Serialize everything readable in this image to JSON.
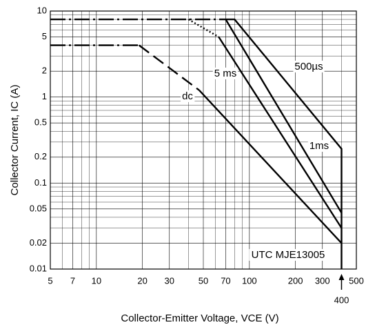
{
  "chart_data": {
    "type": "line",
    "x_label": "Collector-Emitter Voltage, VCE (V)",
    "y_label": "Collector Current, IC (A)",
    "annotation": "UTC MJE13005",
    "x_marker": 400,
    "log_x": true,
    "log_y": true,
    "grid": true,
    "xlim": [
      5,
      500
    ],
    "ylim": [
      0.01,
      10
    ],
    "xticks": [
      5,
      7,
      10,
      20,
      30,
      50,
      70,
      100,
      200,
      300,
      500
    ],
    "yticks": [
      0.01,
      0.02,
      0.05,
      0.1,
      0.2,
      0.5,
      1,
      2,
      5,
      10
    ],
    "x_minor_grid": [
      6,
      8,
      9,
      40,
      60,
      80,
      90,
      400
    ],
    "y_minor_grid": [
      0.03,
      0.04,
      0.06,
      0.07,
      0.08,
      0.09,
      0.3,
      0.4,
      0.6,
      0.7,
      0.8,
      0.9,
      3,
      4,
      6,
      7,
      8,
      9
    ],
    "series": [
      {
        "name": "500µs",
        "color": "#000000",
        "line_style": "solid",
        "x": [
          70,
          80,
          400,
          400
        ],
        "values": [
          8,
          8,
          0.25,
          0.01
        ]
      },
      {
        "name": "5 ms",
        "color": "#000000",
        "line_style": "solid",
        "x": [
          63,
          400
        ],
        "values": [
          5,
          0.03
        ]
      },
      {
        "name": "dc",
        "color": "#000000",
        "line_style": "solid",
        "x": [
          47,
          400
        ],
        "values": [
          1.2,
          0.02
        ]
      },
      {
        "name": "1ms",
        "color": "#000000",
        "line_style": "solid",
        "x": [
          70,
          400
        ],
        "values": [
          8,
          0.045
        ]
      },
      {
        "color": "#000000",
        "line_style": "dashed",
        "x": [
          19,
          47
        ],
        "values": [
          4,
          1.2
        ]
      },
      {
        "color": "#000000",
        "line_style": "dash-dot",
        "x": [
          5,
          19
        ],
        "values": [
          4,
          4
        ]
      },
      {
        "color": "#000000",
        "line_style": "dash-dot",
        "x": [
          5,
          70
        ],
        "values": [
          8,
          8
        ]
      },
      {
        "color": "#000000",
        "line_style": "dotted",
        "x": [
          40,
          63
        ],
        "values": [
          8,
          5
        ]
      }
    ]
  }
}
